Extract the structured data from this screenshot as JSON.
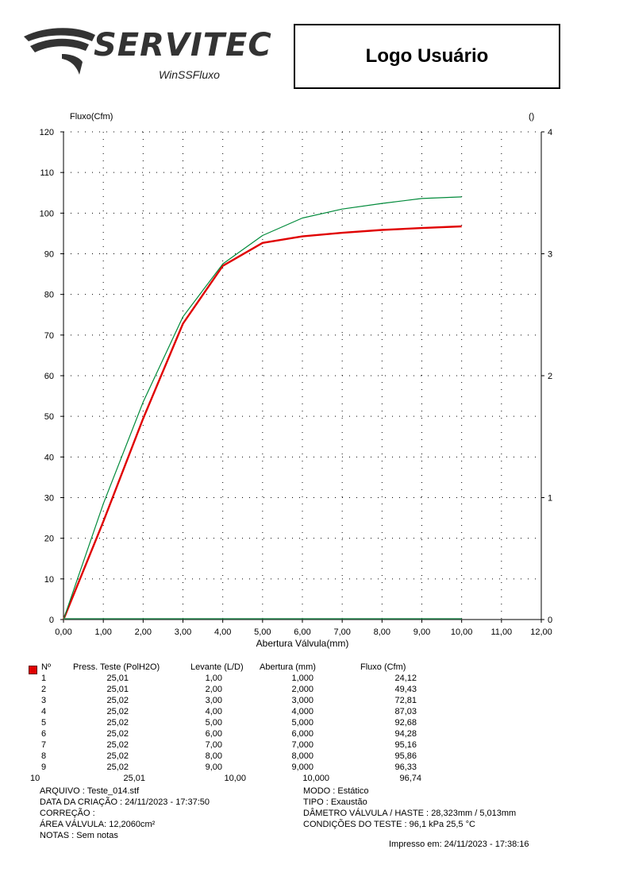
{
  "header": {
    "logo_text": "SERVITEC",
    "logo_subtitle": "WinSSFluxo",
    "user_logo_label": "Logo Usuário"
  },
  "colors": {
    "series_red": "#e00000",
    "series_green": "#008a3a",
    "baseline_green": "#2e8b57"
  },
  "chart_data": {
    "type": "line",
    "xlabel": "Abertura Válvula(mm)",
    "ylabel": "Fluxo(Cfm)",
    "y2label": "()",
    "xlim": [
      0,
      12
    ],
    "ylim": [
      0,
      120
    ],
    "y2lim": [
      0,
      4
    ],
    "x_ticks": [
      "0,00",
      "1,00",
      "2,00",
      "3,00",
      "4,00",
      "5,00",
      "6,00",
      "7,00",
      "8,00",
      "9,00",
      "10,00",
      "11,00",
      "12,00"
    ],
    "y_ticks": [
      "0",
      "10",
      "20",
      "30",
      "40",
      "50",
      "60",
      "70",
      "80",
      "90",
      "100",
      "110",
      "120"
    ],
    "y2_ticks": [
      "0",
      "1",
      "2",
      "3",
      "4"
    ],
    "grid": true,
    "series": [
      {
        "color": "#e00000",
        "x": [
          0,
          1,
          2,
          3,
          4,
          5,
          6,
          7,
          8,
          9,
          10
        ],
        "y": [
          0,
          24.12,
          49.43,
          72.81,
          87.03,
          92.68,
          94.28,
          95.16,
          95.86,
          96.33,
          96.74
        ]
      },
      {
        "color": "#008a3a",
        "x": [
          0,
          1,
          2,
          3,
          4,
          5,
          6,
          7,
          8,
          9,
          10
        ],
        "y": [
          0,
          28.5,
          53.5,
          74.5,
          87.5,
          94.5,
          98.8,
          101.0,
          102.4,
          103.6,
          104.0
        ]
      },
      {
        "color": "#2e8b57",
        "x": [
          0,
          10
        ],
        "y": [
          0.2,
          0.2
        ]
      }
    ]
  },
  "table": {
    "headers": [
      "Nº",
      "Press. Teste (PolH2O)",
      "Levante (L/D)",
      "Abertura (mm)",
      "Fluxo (Cfm)"
    ],
    "rows": [
      [
        "1",
        "25,01",
        "1,00",
        "1,000",
        "24,12"
      ],
      [
        "2",
        "25,01",
        "2,00",
        "2,000",
        "49,43"
      ],
      [
        "3",
        "25,02",
        "3,00",
        "3,000",
        "72,81"
      ],
      [
        "4",
        "25,02",
        "4,00",
        "4,000",
        "87,03"
      ],
      [
        "5",
        "25,02",
        "5,00",
        "5,000",
        "92,68"
      ],
      [
        "6",
        "25,02",
        "6,00",
        "6,000",
        "94,28"
      ],
      [
        "7",
        "25,02",
        "7,00",
        "7,000",
        "95,16"
      ],
      [
        "8",
        "25,02",
        "8,00",
        "8,000",
        "95,86"
      ],
      [
        "9",
        "25,02",
        "9,00",
        "9,000",
        "96,33"
      ],
      [
        "10",
        "25,01",
        "10,00",
        "10,000",
        "96,74"
      ]
    ]
  },
  "meta": {
    "arquivo_label": "ARQUIVO   :",
    "arquivo_value": "Teste_014.stf",
    "criacao_label": "DATA DA CRIAÇÃO :",
    "criacao_value": "24/11/2023 - 17:37:50",
    "correcao_label": "CORREÇÃO   :",
    "area_label": "ÁREA VÁLVULA:",
    "area_value": "12,2060cm²",
    "notas_label": "NOTAS  :",
    "notas_value": "Sem notas",
    "modo_label": "MODO    :",
    "modo_value": "Estático",
    "tipo_label": "TIPO     :",
    "tipo_value": "Exaustão",
    "diametro_label": "DÂMETRO VÁLVULA /  HASTE :",
    "diametro_value": "28,323mm  /  5,013mm",
    "condicoes_label": "CONDIÇÕES DO TESTE :",
    "condicoes_value": "96,1  kPa   25,5  °C",
    "impresso": "Impresso em: 24/11/2023 - 17:38:16"
  }
}
